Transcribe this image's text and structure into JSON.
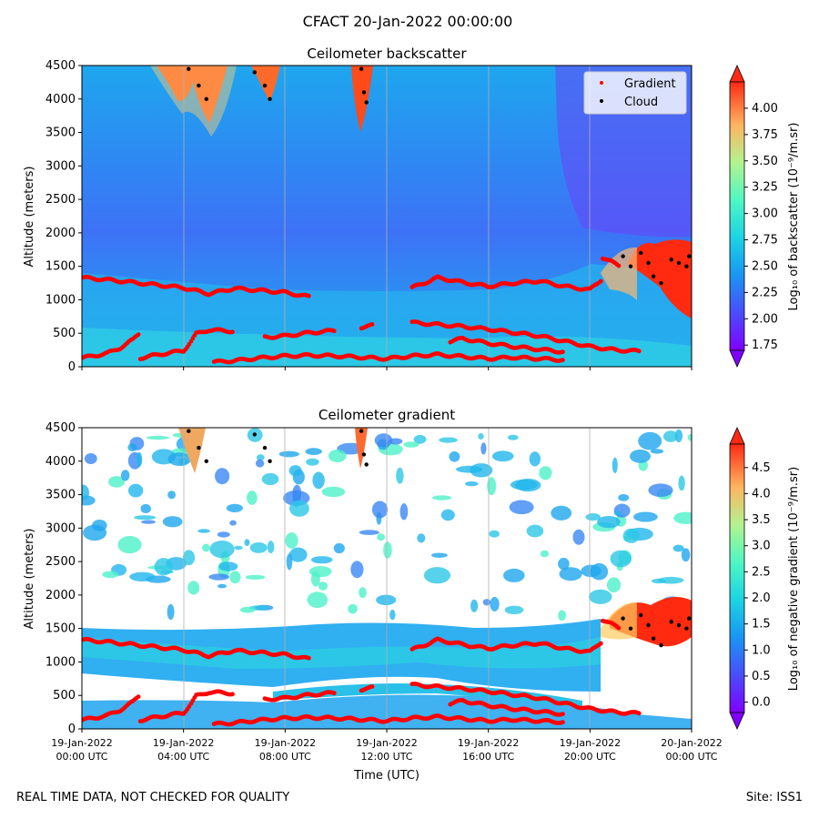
{
  "suptitle": "CFACT 20-Jan-2022 00:00:00",
  "footer": {
    "left": "REAL TIME DATA, NOT CHECKED FOR QUALITY",
    "right": "Site: ISS1"
  },
  "chart_data": [
    {
      "type": "heatmap",
      "title": "Ceilometer backscatter",
      "ylabel": "Altitude (meters)",
      "ylim": [
        0,
        4500
      ],
      "yticks": [
        "0",
        "500",
        "1000",
        "1500",
        "2000",
        "2500",
        "3000",
        "3500",
        "4000",
        "4500"
      ],
      "xlim_hours": [
        0,
        24
      ],
      "colorbar": {
        "label": "Log₁₀ of backscatter (10⁻⁹/m.sr)",
        "range": [
          1.7,
          4.25
        ],
        "ticks": [
          "1.75",
          "2.00",
          "2.25",
          "2.50",
          "2.75",
          "3.00",
          "3.25",
          "3.50",
          "3.75",
          "4.00"
        ],
        "colormap": "rainbow",
        "extend": "both"
      },
      "legend": {
        "placement": "top-right",
        "entries": [
          {
            "label": "Gradient",
            "color": "#ff0000"
          },
          {
            "label": "Cloud",
            "color": "#000000"
          }
        ]
      },
      "grid": "vertical"
    },
    {
      "type": "heatmap",
      "title": "Ceilometer gradient",
      "ylabel": "Altitude (meters)",
      "xlabel": "Time (UTC)",
      "ylim": [
        0,
        4500
      ],
      "yticks": [
        "0",
        "500",
        "1000",
        "1500",
        "2000",
        "2500",
        "3000",
        "3500",
        "4000",
        "4500"
      ],
      "xlim_hours": [
        0,
        24
      ],
      "xticks": [
        {
          "hour": 0,
          "line1": "19-Jan-2022",
          "line2": "00:00 UTC"
        },
        {
          "hour": 4,
          "line1": "19-Jan-2022",
          "line2": "04:00 UTC"
        },
        {
          "hour": 8,
          "line1": "19-Jan-2022",
          "line2": "08:00 UTC"
        },
        {
          "hour": 12,
          "line1": "19-Jan-2022",
          "line2": "12:00 UTC"
        },
        {
          "hour": 16,
          "line1": "19-Jan-2022",
          "line2": "16:00 UTC"
        },
        {
          "hour": 20,
          "line1": "19-Jan-2022",
          "line2": "20:00 UTC"
        },
        {
          "hour": 24,
          "line1": "20-Jan-2022",
          "line2": "00:00 UTC"
        }
      ],
      "colorbar": {
        "label": "Log₁₀ of negative gradient (10⁻⁹/m.sr)",
        "range": [
          -0.2,
          4.95
        ],
        "ticks": [
          "0.0",
          "0.5",
          "1.0",
          "1.5",
          "2.0",
          "2.5",
          "3.0",
          "3.5",
          "4.0",
          "4.5"
        ],
        "colormap": "rainbow",
        "extend": "both"
      },
      "grid": "vertical"
    }
  ],
  "overlay_series": {
    "gradient_bands": [
      {
        "name": "",
        "points": [
          [
            0,
            1330
          ],
          [
            1,
            1300
          ],
          [
            2,
            1260
          ],
          [
            3,
            1220
          ],
          [
            4,
            1180
          ],
          [
            5,
            1090
          ],
          [
            6,
            1170
          ],
          [
            7,
            1140
          ],
          [
            8,
            1110
          ],
          [
            9,
            1040
          ]
        ]
      },
      {
        "name": "",
        "points": [
          [
            13,
            1180
          ],
          [
            14,
            1330
          ],
          [
            15,
            1260
          ],
          [
            16,
            1200
          ],
          [
            17,
            1250
          ],
          [
            18,
            1280
          ],
          [
            19,
            1200
          ],
          [
            20,
            1150
          ],
          [
            20.5,
            1320
          ]
        ]
      },
      {
        "name": "",
        "points": [
          [
            0,
            130
          ],
          [
            1,
            200
          ],
          [
            1.5,
            280
          ],
          [
            2,
            400
          ],
          [
            2.3,
            520
          ]
        ]
      },
      {
        "name": "",
        "points": [
          [
            2.3,
            130
          ],
          [
            3,
            180
          ],
          [
            4,
            240
          ],
          [
            4.3,
            380
          ],
          [
            4.5,
            490
          ],
          [
            5,
            550
          ],
          [
            6,
            530
          ]
        ]
      },
      {
        "name": "",
        "points": [
          [
            5.2,
            70
          ],
          [
            6,
            90
          ],
          [
            7,
            130
          ],
          [
            8,
            160
          ],
          [
            9,
            170
          ],
          [
            10,
            160
          ],
          [
            11,
            140
          ],
          [
            12,
            120
          ],
          [
            13,
            160
          ],
          [
            14,
            180
          ],
          [
            15,
            150
          ],
          [
            16,
            120
          ],
          [
            17,
            140
          ],
          [
            18,
            120
          ],
          [
            19,
            100
          ]
        ]
      },
      {
        "name": "",
        "points": [
          [
            7.2,
            440
          ],
          [
            8,
            460
          ],
          [
            9,
            510
          ],
          [
            10,
            540
          ]
        ]
      },
      {
        "name": "",
        "points": [
          [
            11,
            590
          ],
          [
            11.5,
            620
          ]
        ]
      },
      {
        "name": "",
        "points": [
          [
            13,
            660
          ],
          [
            14,
            630
          ],
          [
            15,
            600
          ],
          [
            16,
            560
          ],
          [
            17,
            510
          ],
          [
            18,
            460
          ],
          [
            19,
            380
          ],
          [
            20,
            300
          ],
          [
            21,
            250
          ],
          [
            22,
            230
          ]
        ]
      },
      {
        "name": "",
        "points": [
          [
            14.5,
            380
          ],
          [
            15,
            420
          ],
          [
            16,
            350
          ],
          [
            17,
            300
          ],
          [
            18,
            260
          ],
          [
            19,
            220
          ]
        ]
      },
      {
        "name": "",
        "points": [
          [
            20.5,
            1630
          ],
          [
            21.2,
            1500
          ]
        ]
      }
    ],
    "cloud_hits": [
      [
        4.2,
        4450
      ],
      [
        4.6,
        4200
      ],
      [
        4.9,
        4000
      ],
      [
        6.8,
        4400
      ],
      [
        7.2,
        4200
      ],
      [
        7.4,
        4000
      ],
      [
        11,
        4450
      ],
      [
        11.1,
        4100
      ],
      [
        11.2,
        3950
      ],
      [
        21.3,
        1650
      ],
      [
        21.6,
        1500
      ],
      [
        22,
        1700
      ],
      [
        22.3,
        1550
      ],
      [
        22.5,
        1350
      ],
      [
        22.8,
        1250
      ],
      [
        23.2,
        1600
      ],
      [
        23.5,
        1550
      ],
      [
        23.8,
        1500
      ],
      [
        23.9,
        1650
      ]
    ]
  }
}
